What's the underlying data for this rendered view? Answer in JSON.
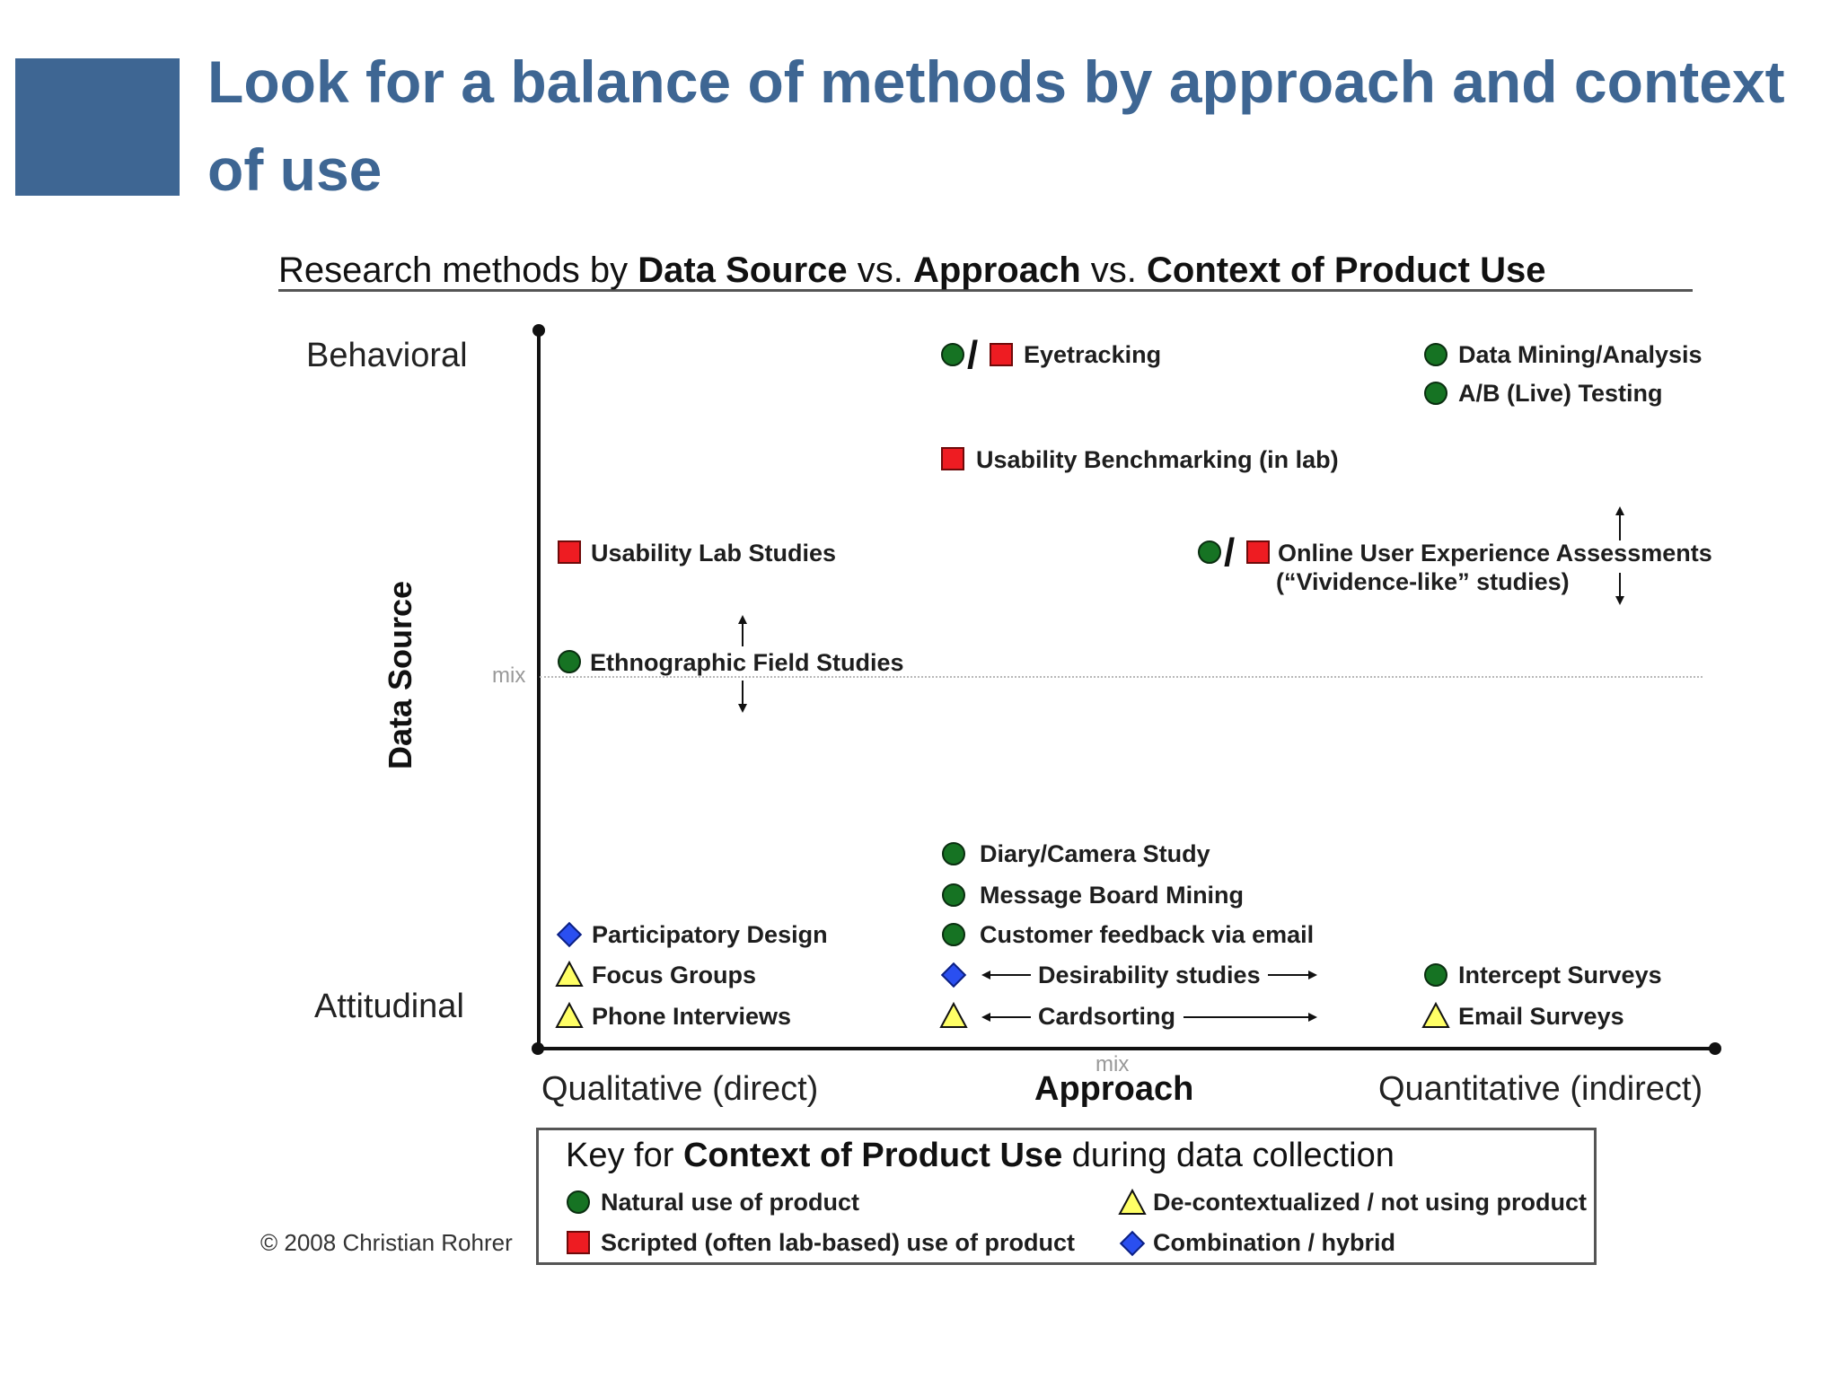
{
  "slide": {
    "title": "Look for a balance of methods by approach and context of use"
  },
  "chart_title": {
    "prefix": "Research methods by ",
    "part1": "Data Source",
    "sep1": " vs. ",
    "part2": "Approach",
    "sep2": " vs. ",
    "part3": "Context of Product Use"
  },
  "axes": {
    "y_title": "Data Source",
    "y_top": "Behavioral",
    "y_bottom": "Attitudinal",
    "y_mid": "mix",
    "x_title": "Approach",
    "x_left": "Qualitative (direct)",
    "x_right": "Quantitative (indirect)",
    "x_mid": "mix"
  },
  "methods": {
    "eyetracking": "Eyetracking",
    "data_mining": "Data Mining/Analysis",
    "ab_testing": "A/B (Live) Testing",
    "usability_benchmarking": "Usability Benchmarking (in lab)",
    "usability_lab": "Usability Lab Studies",
    "online_ux_line1": "Online User Experience Assessments",
    "online_ux_line2": "(“Vividence-like” studies)",
    "ethnographic": "Ethnographic Field Studies",
    "diary_camera": "Diary/Camera Study",
    "message_board": "Message Board Mining",
    "customer_feedback": "Customer feedback via email",
    "participatory_design": "Participatory Design",
    "focus_groups": "Focus Groups",
    "phone_interviews": "Phone Interviews",
    "desirability": "Desirability studies",
    "cardsorting": "Cardsorting",
    "intercept_surveys": "Intercept Surveys",
    "email_surveys": "Email Surveys"
  },
  "key": {
    "title_prefix": "Key for ",
    "title_bold": "Context of Product Use",
    "title_suffix": " during data collection",
    "natural": "Natural use of product",
    "scripted": "Scripted (often lab-based) use of product",
    "decontextualized": "De-contextualized / not using product",
    "combination": "Combination / hybrid"
  },
  "copyright": "© 2008 Christian Rohrer",
  "colors": {
    "accent": "#3e6693",
    "natural_green": "#167323",
    "scripted_red": "#ee1c22",
    "decontextualized_yellow": "#ffff66",
    "combination_blue": "#2a4ff0"
  },
  "icons": {
    "natural": "green-circle-icon",
    "scripted": "red-square-icon",
    "decontextualized": "yellow-triangle-icon",
    "combination": "blue-diamond-icon"
  }
}
